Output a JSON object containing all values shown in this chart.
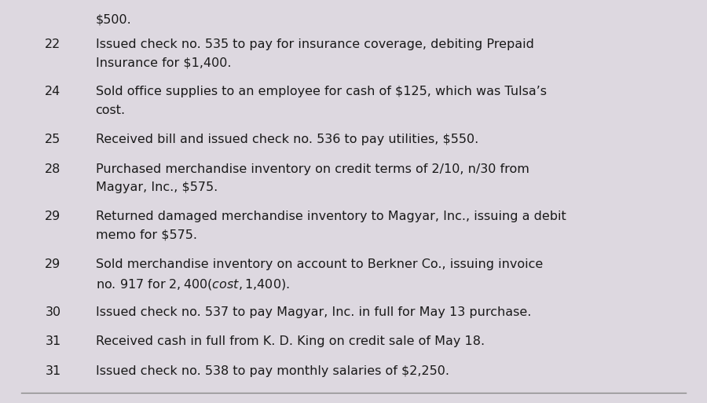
{
  "background_color": "#ddd8e0",
  "text_color": "#1a1a1a",
  "font_size": 11.5,
  "line_color": "#888888",
  "top_text": "$500.",
  "entries": [
    {
      "day": "22",
      "lines": [
        "Issued check no. 535 to pay for insurance coverage, debiting Prepaid",
        "Insurance for $1,400."
      ]
    },
    {
      "day": "24",
      "lines": [
        "Sold office supplies to an employee for cash of $125, which was Tulsa’s",
        "cost."
      ]
    },
    {
      "day": "25",
      "lines": [
        "Received bill and issued check no. 536 to pay utilities, $550."
      ]
    },
    {
      "day": "28",
      "lines": [
        "Purchased merchandise inventory on credit terms of 2/10, n/30 from",
        "Magyar, Inc., $575."
      ]
    },
    {
      "day": "29",
      "lines": [
        "Returned damaged merchandise inventory to Magyar, Inc., issuing a debit",
        "memo for $575."
      ]
    },
    {
      "day": "29",
      "lines": [
        "Sold merchandise inventory on account to Berkner Co., issuing invoice",
        "no. 917 for $2,400 (cost, $1,400)."
      ]
    },
    {
      "day": "30",
      "lines": [
        "Issued check no. 537 to pay Magyar, Inc. in full for May 13 purchase."
      ]
    },
    {
      "day": "31",
      "lines": [
        "Received cash in full from K. D. King on credit sale of May 18."
      ]
    },
    {
      "day": "31",
      "lines": [
        "Issued check no. 538 to pay monthly salaries of $2,250."
      ]
    }
  ]
}
